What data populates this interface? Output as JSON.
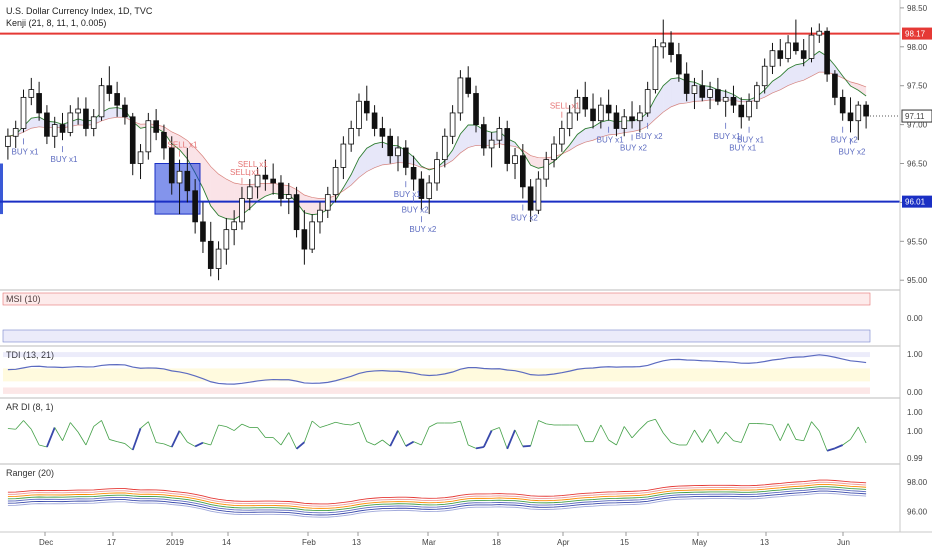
{
  "header": {
    "title": "U.S. Dollar Currency Index, 1D, TVC",
    "indicator": "Kenji (21, 8, 11, 1, 0.005)"
  },
  "chart_data": {
    "type": "candlestick",
    "y_ticks": [
      "98.50",
      "98.00",
      "97.50",
      "97.00",
      "96.50",
      "96.00",
      "95.50",
      "95.00"
    ],
    "y_range": [
      94.9,
      98.55
    ],
    "x_labels": [
      "Dec",
      "17",
      "2019",
      "14",
      "Feb",
      "13",
      "Mar",
      "18",
      "Apr",
      "15",
      "May",
      "13",
      "Jun"
    ],
    "levels": [
      {
        "value": 98.17,
        "label": "98.17",
        "color": "#e53935"
      },
      {
        "value": 96.01,
        "label": "96.01",
        "color": "#1a2fc4"
      }
    ],
    "last_price": {
      "value": 97.11,
      "label": "97.11"
    },
    "candles_ohlc": [
      [
        96.72,
        96.95,
        96.55,
        96.85
      ],
      [
        96.85,
        97.05,
        96.7,
        96.95
      ],
      [
        96.95,
        97.45,
        96.9,
        97.35
      ],
      [
        97.35,
        97.6,
        97.25,
        97.45
      ],
      [
        97.4,
        97.55,
        97.05,
        97.15
      ],
      [
        97.15,
        97.25,
        96.75,
        96.85
      ],
      [
        96.85,
        97.1,
        96.7,
        97.0
      ],
      [
        97.0,
        97.15,
        96.8,
        96.9
      ],
      [
        96.9,
        97.25,
        96.85,
        97.15
      ],
      [
        97.15,
        97.35,
        97.0,
        97.2
      ],
      [
        97.2,
        97.35,
        96.85,
        96.95
      ],
      [
        96.95,
        97.2,
        96.85,
        97.1
      ],
      [
        97.1,
        97.6,
        97.05,
        97.5
      ],
      [
        97.5,
        97.75,
        97.3,
        97.4
      ],
      [
        97.4,
        97.55,
        97.1,
        97.25
      ],
      [
        97.25,
        97.35,
        97.0,
        97.1
      ],
      [
        97.1,
        97.15,
        96.35,
        96.5
      ],
      [
        96.5,
        96.75,
        96.3,
        96.65
      ],
      [
        96.65,
        97.15,
        96.55,
        97.05
      ],
      [
        97.05,
        97.2,
        96.8,
        96.9
      ],
      [
        96.9,
        97.0,
        96.55,
        96.7
      ],
      [
        96.7,
        96.85,
        96.1,
        96.25
      ],
      [
        96.25,
        96.55,
        95.85,
        96.4
      ],
      [
        96.4,
        96.7,
        96.0,
        96.15
      ],
      [
        96.15,
        96.3,
        95.6,
        95.75
      ],
      [
        95.75,
        96.0,
        95.35,
        95.5
      ],
      [
        95.5,
        95.75,
        95.05,
        95.15
      ],
      [
        95.15,
        95.5,
        95.0,
        95.4
      ],
      [
        95.4,
        95.8,
        95.2,
        95.65
      ],
      [
        95.65,
        95.9,
        95.45,
        95.75
      ],
      [
        95.75,
        96.2,
        95.65,
        96.05
      ],
      [
        96.05,
        96.3,
        95.9,
        96.2
      ],
      [
        96.2,
        96.45,
        96.05,
        96.35
      ],
      [
        96.35,
        96.55,
        96.15,
        96.3
      ],
      [
        96.3,
        96.5,
        96.1,
        96.25
      ],
      [
        96.25,
        96.35,
        95.95,
        96.05
      ],
      [
        96.05,
        96.25,
        95.85,
        96.1
      ],
      [
        96.1,
        96.2,
        95.55,
        95.65
      ],
      [
        95.65,
        95.9,
        95.2,
        95.4
      ],
      [
        95.4,
        95.85,
        95.35,
        95.75
      ],
      [
        95.75,
        96.0,
        95.6,
        95.9
      ],
      [
        95.9,
        96.2,
        95.8,
        96.1
      ],
      [
        96.1,
        96.55,
        96.0,
        96.45
      ],
      [
        96.45,
        96.85,
        96.3,
        96.75
      ],
      [
        96.75,
        97.05,
        96.65,
        96.95
      ],
      [
        96.95,
        97.4,
        96.85,
        97.3
      ],
      [
        97.3,
        97.5,
        97.05,
        97.15
      ],
      [
        97.15,
        97.25,
        96.85,
        96.95
      ],
      [
        96.95,
        97.1,
        96.7,
        96.85
      ],
      [
        96.85,
        96.95,
        96.5,
        96.6
      ],
      [
        96.6,
        96.85,
        96.4,
        96.7
      ],
      [
        96.7,
        96.8,
        96.35,
        96.45
      ],
      [
        96.45,
        96.6,
        96.15,
        96.3
      ],
      [
        96.3,
        96.4,
        95.9,
        96.05
      ],
      [
        96.05,
        96.35,
        95.85,
        96.25
      ],
      [
        96.25,
        96.65,
        96.15,
        96.55
      ],
      [
        96.55,
        96.95,
        96.45,
        96.85
      ],
      [
        96.85,
        97.25,
        96.75,
        97.15
      ],
      [
        97.15,
        97.7,
        97.05,
        97.6
      ],
      [
        97.6,
        97.75,
        97.35,
        97.4
      ],
      [
        97.4,
        97.5,
        96.9,
        97.0
      ],
      [
        97.0,
        97.1,
        96.6,
        96.7
      ],
      [
        96.7,
        96.9,
        96.45,
        96.8
      ],
      [
        96.8,
        97.1,
        96.7,
        96.95
      ],
      [
        96.95,
        97.05,
        96.4,
        96.5
      ],
      [
        96.5,
        96.7,
        96.3,
        96.6
      ],
      [
        96.6,
        96.75,
        96.05,
        96.2
      ],
      [
        96.2,
        96.3,
        95.75,
        95.9
      ],
      [
        95.9,
        96.4,
        95.85,
        96.3
      ],
      [
        96.3,
        96.65,
        96.2,
        96.55
      ],
      [
        96.55,
        96.85,
        96.45,
        96.75
      ],
      [
        96.75,
        97.05,
        96.65,
        96.95
      ],
      [
        96.95,
        97.25,
        96.85,
        97.15
      ],
      [
        97.15,
        97.45,
        97.05,
        97.35
      ],
      [
        97.35,
        97.55,
        97.1,
        97.2
      ],
      [
        97.2,
        97.4,
        96.95,
        97.05
      ],
      [
        97.05,
        97.35,
        96.95,
        97.25
      ],
      [
        97.25,
        97.45,
        97.05,
        97.15
      ],
      [
        97.15,
        97.25,
        96.85,
        96.95
      ],
      [
        96.95,
        97.2,
        96.85,
        97.1
      ],
      [
        97.1,
        97.3,
        96.95,
        97.05
      ],
      [
        97.05,
        97.25,
        96.9,
        97.15
      ],
      [
        97.15,
        97.55,
        97.1,
        97.45
      ],
      [
        97.45,
        98.1,
        97.4,
        98.0
      ],
      [
        98.0,
        98.35,
        97.85,
        98.05
      ],
      [
        98.05,
        98.2,
        97.8,
        97.9
      ],
      [
        97.9,
        98.05,
        97.55,
        97.65
      ],
      [
        97.65,
        97.8,
        97.3,
        97.4
      ],
      [
        97.4,
        97.6,
        97.2,
        97.5
      ],
      [
        97.5,
        97.7,
        97.3,
        97.35
      ],
      [
        97.35,
        97.55,
        97.2,
        97.45
      ],
      [
        97.45,
        97.6,
        97.25,
        97.3
      ],
      [
        97.3,
        97.45,
        97.1,
        97.35
      ],
      [
        97.35,
        97.5,
        97.15,
        97.25
      ],
      [
        97.25,
        97.35,
        96.95,
        97.1
      ],
      [
        97.1,
        97.4,
        97.05,
        97.3
      ],
      [
        97.3,
        97.55,
        97.2,
        97.5
      ],
      [
        97.5,
        97.85,
        97.4,
        97.75
      ],
      [
        97.75,
        98.05,
        97.65,
        97.95
      ],
      [
        97.95,
        98.1,
        97.75,
        97.85
      ],
      [
        97.85,
        98.15,
        97.8,
        98.05
      ],
      [
        98.05,
        98.35,
        97.9,
        97.95
      ],
      [
        97.95,
        98.1,
        97.75,
        97.85
      ],
      [
        97.85,
        98.25,
        97.8,
        98.15
      ],
      [
        98.15,
        98.3,
        98.05,
        98.2
      ],
      [
        98.2,
        98.25,
        97.55,
        97.65
      ],
      [
        97.65,
        97.7,
        97.25,
        97.35
      ],
      [
        97.35,
        97.45,
        97.05,
        97.15
      ],
      [
        97.15,
        97.35,
        96.9,
        97.05
      ],
      [
        97.05,
        97.3,
        96.8,
        97.25
      ],
      [
        97.25,
        97.3,
        96.95,
        97.11
      ]
    ],
    "signals": [
      {
        "i": 7,
        "text": "BUY x1",
        "side": "below",
        "color": "#5c6bc0"
      },
      {
        "i": 2,
        "text": "BUY x1",
        "side": "below",
        "color": "#5c6bc0"
      },
      {
        "i": 22,
        "text": "SELL x1",
        "side": "above",
        "color": "#e57373"
      },
      {
        "i": 30,
        "text": "SELL x1",
        "side": "above",
        "color": "#e57373"
      },
      {
        "i": 31,
        "text": "SELL x1",
        "side": "above",
        "color": "#e57373"
      },
      {
        "i": 52,
        "text": "BUY x2",
        "side": "below",
        "color": "#5c6bc0"
      },
      {
        "i": 51,
        "text": "BUY x1",
        "side": "below",
        "color": "#5c6bc0"
      },
      {
        "i": 53,
        "text": "BUY x2",
        "side": "below",
        "color": "#5c6bc0"
      },
      {
        "i": 66,
        "text": "BUY x2",
        "side": "below",
        "color": "#5c6bc0"
      },
      {
        "i": 71,
        "text": "SELL x1",
        "side": "above",
        "color": "#e57373"
      },
      {
        "i": 77,
        "text": "BUY x1",
        "side": "below",
        "color": "#5c6bc0"
      },
      {
        "i": 80,
        "text": "BUY x2",
        "side": "below",
        "color": "#5c6bc0"
      },
      {
        "i": 82,
        "text": "BUY x2",
        "side": "below",
        "color": "#5c6bc0"
      },
      {
        "i": 92,
        "text": "BUY x1",
        "side": "below",
        "color": "#5c6bc0"
      },
      {
        "i": 95,
        "text": "BUY x1",
        "side": "below",
        "color": "#5c6bc0"
      },
      {
        "i": 94,
        "text": "BUY x1",
        "side": "below",
        "color": "#5c6bc0"
      },
      {
        "i": 108,
        "text": "BUY x2",
        "side": "below",
        "color": "#5c6bc0"
      },
      {
        "i": 107,
        "text": "BUY x2",
        "side": "below",
        "color": "#5c6bc0"
      }
    ],
    "panels": [
      {
        "name": "MSI (10)",
        "ticks": [
          "0.00"
        ]
      },
      {
        "name": "TDI (13, 21)",
        "ticks": [
          "1.00",
          "0.00"
        ]
      },
      {
        "name": "AR DI (8, 1)",
        "ticks": [
          "1.00",
          "1.00",
          "0.99"
        ]
      },
      {
        "name": "Ranger (20)",
        "ticks": [
          "98.00",
          "96.00"
        ]
      }
    ]
  }
}
